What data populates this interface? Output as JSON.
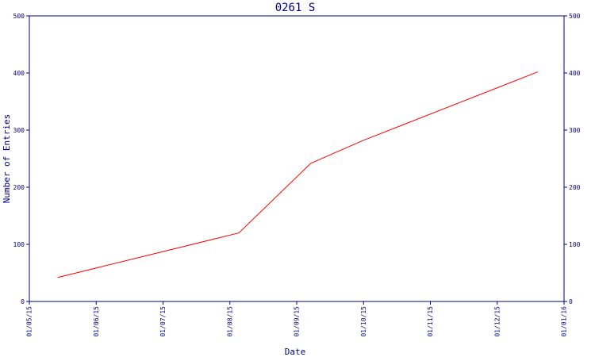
{
  "chart_data": {
    "type": "line",
    "title": "0261 S",
    "xlabel": "Date",
    "ylabel": "Number of Entries",
    "x_tick_labels": [
      "01/05/15",
      "01/06/15",
      "01/07/15",
      "01/08/15",
      "01/09/15",
      "01/10/15",
      "01/11/15",
      "01/12/15",
      "01/01/16"
    ],
    "y_ticks": [
      0,
      100,
      200,
      300,
      400,
      500
    ],
    "ylim": [
      0,
      500
    ],
    "xlim": [
      "2015-05-01",
      "2016-01-01"
    ],
    "series": [
      {
        "x": [
          "2015-05-14",
          "2015-08-05",
          "2015-09-07",
          "2015-10-01",
          "2015-12-20"
        ],
        "values": [
          42,
          120,
          242,
          282,
          402
        ]
      }
    ],
    "grid": false,
    "right_axis": true
  },
  "colors": {
    "axis": "#000080",
    "line": "#ff0000",
    "background": "#ffffff"
  }
}
